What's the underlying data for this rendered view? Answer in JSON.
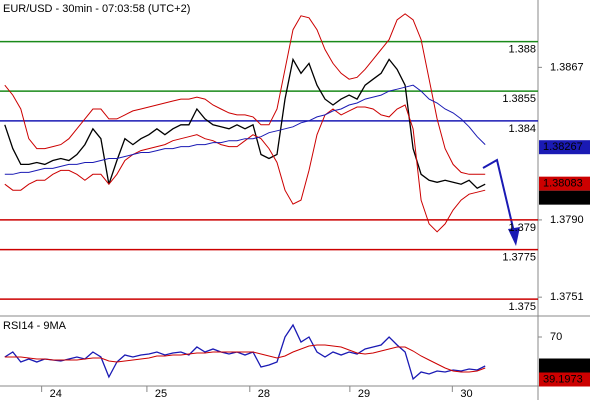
{
  "chart_data": [
    {
      "type": "line",
      "title": "EUR/USD - 30min - 07:03:58 (UTC+2)",
      "xlim": [
        -0.6,
        66.6
      ],
      "ylim": [
        1.3742,
        1.3901
      ],
      "yticks": [
        1.3751,
        {
          "value": 1.379,
          "label": "1.3790"
        },
        1.3867
      ],
      "series": [
        {
          "color": "#000000",
          "values": [
            1.3838,
            1.3826,
            1.3818,
            1.3818,
            1.3819,
            1.3818,
            1.382,
            1.3821,
            1.382,
            1.3823,
            1.3828,
            1.3836,
            1.3831,
            1.3808,
            1.382,
            1.3831,
            1.3828,
            1.3831,
            1.3833,
            1.3836,
            1.3833,
            1.3836,
            1.3838,
            1.3838,
            1.3846,
            1.3841,
            1.3838,
            1.3837,
            1.3836,
            1.3838,
            1.3836,
            1.3838,
            1.3823,
            1.3821,
            1.3823,
            1.3851,
            1.3871,
            1.3864,
            1.3869,
            1.3858,
            1.3851,
            1.3848,
            1.3851,
            1.3853,
            1.3851,
            1.3858,
            1.3861,
            1.3864,
            1.3871,
            1.3866,
            1.3858,
            1.3826,
            1.3813,
            1.381,
            1.3809,
            1.381,
            1.3809,
            1.3808,
            1.381,
            1.3806,
            1.3808
          ]
        },
        {
          "color": "#cc0000",
          "values": [
            1.3858,
            1.3853,
            1.3846,
            1.3831,
            1.3826,
            1.3826,
            1.3827,
            1.3828,
            1.3831,
            1.3836,
            1.3841,
            1.3846,
            1.3846,
            1.3841,
            1.3841,
            1.3843,
            1.3845,
            1.3846,
            1.3847,
            1.3848,
            1.3849,
            1.385,
            1.3851,
            1.3851,
            1.3852,
            1.3851,
            1.3848,
            1.3846,
            1.3844,
            1.3843,
            1.3843,
            1.3842,
            1.3838,
            1.3838,
            1.3846,
            1.3866,
            1.3886,
            1.3893,
            1.3892,
            1.3886,
            1.3876,
            1.3869,
            1.3864,
            1.3861,
            1.3862,
            1.3866,
            1.3871,
            1.3876,
            1.3881,
            1.3891,
            1.3894,
            1.3891,
            1.3881,
            1.3861,
            1.3841,
            1.3826,
            1.3818,
            1.3814,
            1.3813,
            1.3813,
            1.3813
          ]
        },
        {
          "color": "#cc0000",
          "values": [
            1.3808,
            1.3805,
            1.3805,
            1.3808,
            1.381,
            1.381,
            1.3813,
            1.3815,
            1.3815,
            1.3813,
            1.381,
            1.3813,
            1.3813,
            1.3808,
            1.3813,
            1.382,
            1.3823,
            1.3825,
            1.3826,
            1.3827,
            1.3828,
            1.383,
            1.3831,
            1.3832,
            1.3833,
            1.3831,
            1.383,
            1.3828,
            1.3827,
            1.3827,
            1.383,
            1.3833,
            1.3831,
            1.3826,
            1.3819,
            1.3805,
            1.3798,
            1.38,
            1.3815,
            1.3833,
            1.3843,
            1.3846,
            1.3843,
            1.3845,
            1.3847,
            1.3847,
            1.3846,
            1.3843,
            1.3842,
            1.3846,
            1.3848,
            1.3836,
            1.38,
            1.3788,
            1.3784,
            1.3788,
            1.3795,
            1.38,
            1.3803,
            1.3804,
            1.3805
          ]
        },
        {
          "color": "#1a1ab4",
          "values": [
            1.3813,
            1.3813,
            1.3814,
            1.3814,
            1.3815,
            1.3816,
            1.3816,
            1.3817,
            1.3818,
            1.3818,
            1.3819,
            1.3819,
            1.382,
            1.3821,
            1.3821,
            1.3822,
            1.3823,
            1.3824,
            1.3824,
            1.3825,
            1.3826,
            1.3826,
            1.3827,
            1.3827,
            1.3828,
            1.3828,
            1.3829,
            1.3829,
            1.383,
            1.383,
            1.3831,
            1.3831,
            1.3832,
            1.3834,
            1.3835,
            1.3836,
            1.3837,
            1.3839,
            1.384,
            1.3842,
            1.3843,
            1.3845,
            1.3846,
            1.3848,
            1.3849,
            1.3851,
            1.3852,
            1.3853,
            1.3855,
            1.3856,
            1.3857,
            1.3858,
            1.3855,
            1.3851,
            1.3849,
            1.3846,
            1.3844,
            1.3841,
            1.3837,
            1.3832,
            1.3828
          ]
        }
      ],
      "levels": [
        {
          "value": 1.388,
          "color": "#1a8a1a"
        },
        {
          "value": 1.3855,
          "color": "#1a8a1a"
        },
        {
          "value": 1.384,
          "color": "#1a1ab4"
        },
        {
          "value": 1.379,
          "color": "#cc0000"
        },
        {
          "value": 1.3775,
          "color": "#cc0000"
        },
        {
          "value": 1.375,
          "color": "#cc0000"
        }
      ],
      "markers": [
        {
          "value": 1.38267,
          "color": "#1a1ab4"
        },
        {
          "value": 1.38083,
          "color": "#cc0000"
        },
        {
          "value": 1.38065,
          "color": "#000000"
        }
      ]
    },
    {
      "type": "line",
      "title": "RSI14 - 9MA",
      "xlim": [
        -0.6,
        66.6
      ],
      "xticks": [
        {
          "value": 4.6,
          "label": "24"
        },
        {
          "value": 17.75,
          "label": "25"
        },
        {
          "value": 30.6,
          "label": "28"
        },
        {
          "value": 43.1,
          "label": "29"
        },
        {
          "value": 55.9,
          "label": "30"
        }
      ],
      "ylim": [
        22,
        89
      ],
      "yticks": [
        70
      ],
      "series": [
        {
          "color": "#1a1ab4",
          "values": [
            50,
            55,
            45,
            48,
            45,
            48,
            47,
            46,
            48,
            50,
            48,
            55,
            50,
            30,
            45,
            52,
            50,
            52,
            53,
            55,
            52,
            54,
            55,
            52,
            60,
            55,
            58,
            55,
            53,
            55,
            52,
            55,
            40,
            42,
            45,
            70,
            82,
            65,
            70,
            55,
            50,
            55,
            52,
            55,
            53,
            58,
            60,
            62,
            70,
            62,
            55,
            28,
            35,
            33,
            36,
            35,
            37,
            36,
            38,
            37,
            41
          ]
        },
        {
          "color": "#cc0000",
          "values": [
            50,
            50,
            50,
            49,
            48,
            48,
            47,
            47,
            47,
            47,
            48,
            49,
            49,
            46,
            45,
            46,
            47,
            48,
            49,
            51,
            51,
            52,
            52,
            53,
            54,
            54,
            55,
            55,
            55,
            55,
            55,
            55,
            53,
            51,
            49,
            51,
            55,
            58,
            61,
            62,
            62,
            61,
            60,
            57,
            54,
            53,
            54,
            56,
            58,
            60,
            60,
            56,
            51,
            47,
            43,
            39,
            36,
            35,
            35,
            36,
            39
          ]
        }
      ],
      "markers": [
        {
          "value": 41.4952,
          "color": "#000000"
        },
        {
          "value": 39.1973,
          "color": "#cc0000"
        }
      ]
    }
  ]
}
